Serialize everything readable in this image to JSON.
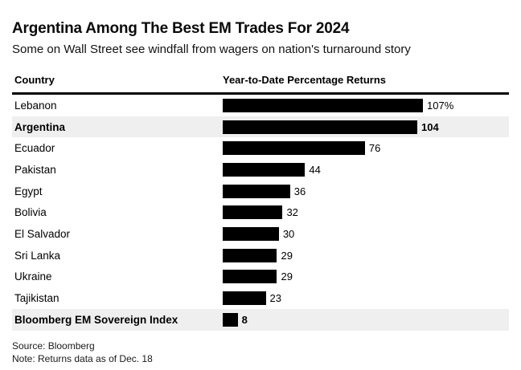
{
  "header": {
    "title": "Argentina Among The Best EM Trades For 2024",
    "subtitle": "Some on Wall Street see windfall from wagers on nation's turnaround story"
  },
  "table": {
    "country_header": "Country",
    "returns_header": "Year-to-Date Percentage Returns"
  },
  "footer": {
    "source": "Source: Bloomberg",
    "note": "Note: Returns data as of Dec. 18"
  },
  "colors": {
    "bar": "#000000",
    "highlight_row": "#efefef",
    "header_rule": "#000000",
    "background": "#ffffff",
    "text": "#000000"
  },
  "chart_data": {
    "type": "bar",
    "orientation": "horizontal",
    "title": "Argentina Among The Best EM Trades For 2024",
    "subtitle": "Some on Wall Street see windfall from wagers on nation's turnaround story",
    "xlabel": "Year-to-Date Percentage Returns",
    "ylabel": "Country",
    "categories": [
      "Lebanon",
      "Argentina",
      "Ecuador",
      "Pakistan",
      "Egypt",
      "Bolivia",
      "El Salvador",
      "Sri Lanka",
      "Ukraine",
      "Tajikistan",
      "Bloomberg EM Sovereign Index"
    ],
    "values": [
      107,
      104,
      76,
      44,
      36,
      32,
      30,
      29,
      29,
      23,
      8
    ],
    "value_labels": [
      "107%",
      "104",
      "76",
      "44",
      "36",
      "32",
      "30",
      "29",
      "29",
      "23",
      "8"
    ],
    "highlighted_categories": [
      "Argentina",
      "Bloomberg EM Sovereign Index"
    ],
    "xlim": [
      0,
      107
    ],
    "grid": false,
    "legend": "none",
    "unit": "percent"
  }
}
